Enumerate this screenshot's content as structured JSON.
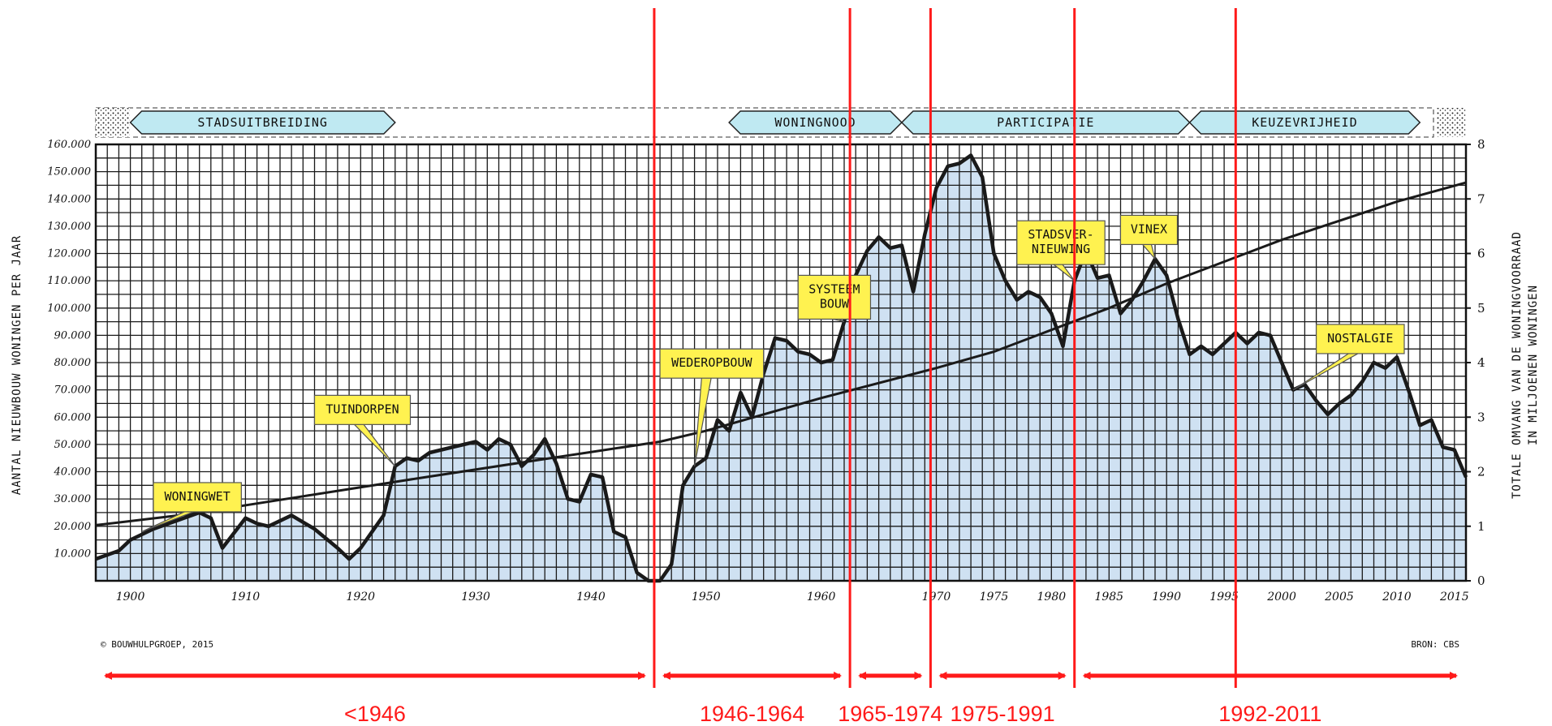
{
  "chart_data": {
    "type": "area",
    "title": "",
    "ylabel_left": "AANTAL NIEUWBOUW WONINGEN PER JAAR",
    "ylabel_right_lines": [
      "TOTALE OMVANG VAN DE WONINGVOORRAAD",
      "IN MILJOENEN WONINGEN"
    ],
    "xlim": [
      1897,
      2016
    ],
    "ylim_left": [
      0,
      160000
    ],
    "ylim_right": [
      0,
      8
    ],
    "grid": true,
    "x_ticks": [
      {
        "value": 1900,
        "label": "1900"
      },
      {
        "value": 1910,
        "label": "1910"
      },
      {
        "value": 1920,
        "label": "1920"
      },
      {
        "value": 1930,
        "label": "1930"
      },
      {
        "value": 1940,
        "label": "1940"
      },
      {
        "value": 1950,
        "label": "1950"
      },
      {
        "value": 1960,
        "label": "1960"
      },
      {
        "value": 1970,
        "label": "1970"
      },
      {
        "value": 1975,
        "label": "1975"
      },
      {
        "value": 1980,
        "label": "1980"
      },
      {
        "value": 1985,
        "label": "1985"
      },
      {
        "value": 1990,
        "label": "1990"
      },
      {
        "value": 1995,
        "label": "1995"
      },
      {
        "value": 2000,
        "label": "2000"
      },
      {
        "value": 2005,
        "label": "2005"
      },
      {
        "value": 2010,
        "label": "2010"
      },
      {
        "value": 2015,
        "label": "2015"
      }
    ],
    "y_ticks_left": [
      {
        "value": 10000,
        "label": "10.000"
      },
      {
        "value": 20000,
        "label": "20.000"
      },
      {
        "value": 30000,
        "label": "30.000"
      },
      {
        "value": 40000,
        "label": "40.000"
      },
      {
        "value": 50000,
        "label": "50.000"
      },
      {
        "value": 60000,
        "label": "60.000"
      },
      {
        "value": 70000,
        "label": "70.000"
      },
      {
        "value": 80000,
        "label": "80.000"
      },
      {
        "value": 90000,
        "label": "90.000"
      },
      {
        "value": 100000,
        "label": "100.000"
      },
      {
        "value": 110000,
        "label": "110.000"
      },
      {
        "value": 120000,
        "label": "120.000"
      },
      {
        "value": 130000,
        "label": "130.000"
      },
      {
        "value": 140000,
        "label": "140.000"
      },
      {
        "value": 150000,
        "label": "150.000"
      },
      {
        "value": 160000,
        "label": "160.000"
      }
    ],
    "y_ticks_right": [
      {
        "value": 0,
        "label": "0"
      },
      {
        "value": 1,
        "label": "1"
      },
      {
        "value": 2,
        "label": "2"
      },
      {
        "value": 3,
        "label": "3"
      },
      {
        "value": 4,
        "label": "4"
      },
      {
        "value": 5,
        "label": "5"
      },
      {
        "value": 6,
        "label": "6"
      },
      {
        "value": 7,
        "label": "7"
      },
      {
        "value": 8,
        "label": "8"
      }
    ],
    "series": [
      {
        "axis": "left",
        "values": [
          [
            1897,
            8000
          ],
          [
            1899,
            11000
          ],
          [
            1900,
            15000
          ],
          [
            1902,
            19000
          ],
          [
            1904,
            22000
          ],
          [
            1906,
            25000
          ],
          [
            1907,
            23000
          ],
          [
            1908,
            12000
          ],
          [
            1910,
            23000
          ],
          [
            1911,
            21000
          ],
          [
            1912,
            20000
          ],
          [
            1914,
            24000
          ],
          [
            1916,
            19000
          ],
          [
            1918,
            12000
          ],
          [
            1919,
            8000
          ],
          [
            1920,
            12000
          ],
          [
            1922,
            24000
          ],
          [
            1923,
            42000
          ],
          [
            1924,
            45000
          ],
          [
            1925,
            44000
          ],
          [
            1926,
            47000
          ],
          [
            1928,
            49000
          ],
          [
            1930,
            51000
          ],
          [
            1931,
            48000
          ],
          [
            1932,
            52000
          ],
          [
            1933,
            50000
          ],
          [
            1934,
            42000
          ],
          [
            1935,
            46000
          ],
          [
            1936,
            52000
          ],
          [
            1937,
            43000
          ],
          [
            1938,
            30000
          ],
          [
            1939,
            29000
          ],
          [
            1940,
            39000
          ],
          [
            1941,
            38000
          ],
          [
            1942,
            18000
          ],
          [
            1943,
            16000
          ],
          [
            1944,
            3000
          ],
          [
            1945,
            0
          ],
          [
            1946,
            0
          ],
          [
            1947,
            6000
          ],
          [
            1948,
            35000
          ],
          [
            1949,
            42000
          ],
          [
            1950,
            45000
          ],
          [
            1951,
            59000
          ],
          [
            1952,
            55000
          ],
          [
            1953,
            69000
          ],
          [
            1954,
            60000
          ],
          [
            1955,
            76000
          ],
          [
            1956,
            89000
          ],
          [
            1957,
            88000
          ],
          [
            1958,
            84000
          ],
          [
            1959,
            83000
          ],
          [
            1960,
            80000
          ],
          [
            1961,
            81000
          ],
          [
            1962,
            95000
          ],
          [
            1963,
            112000
          ],
          [
            1964,
            121000
          ],
          [
            1965,
            126000
          ],
          [
            1966,
            122000
          ],
          [
            1967,
            123000
          ],
          [
            1968,
            106000
          ],
          [
            1969,
            127000
          ],
          [
            1970,
            144000
          ],
          [
            1971,
            152000
          ],
          [
            1972,
            153000
          ],
          [
            1973,
            156000
          ],
          [
            1974,
            148000
          ],
          [
            1975,
            120000
          ],
          [
            1976,
            110000
          ],
          [
            1977,
            103000
          ],
          [
            1978,
            106000
          ],
          [
            1979,
            104000
          ],
          [
            1980,
            98000
          ],
          [
            1981,
            86000
          ],
          [
            1982,
            110000
          ],
          [
            1983,
            121000
          ],
          [
            1984,
            111000
          ],
          [
            1985,
            112000
          ],
          [
            1986,
            98000
          ],
          [
            1987,
            103000
          ],
          [
            1988,
            110000
          ],
          [
            1989,
            118000
          ],
          [
            1990,
            112000
          ],
          [
            1991,
            96000
          ],
          [
            1992,
            83000
          ],
          [
            1993,
            86000
          ],
          [
            1994,
            83000
          ],
          [
            1995,
            87000
          ],
          [
            1996,
            91000
          ],
          [
            1997,
            87000
          ],
          [
            1998,
            91000
          ],
          [
            1999,
            90000
          ],
          [
            2000,
            80000
          ],
          [
            2001,
            70000
          ],
          [
            2002,
            72000
          ],
          [
            2003,
            66000
          ],
          [
            2004,
            61000
          ],
          [
            2005,
            65000
          ],
          [
            2006,
            68000
          ],
          [
            2007,
            73000
          ],
          [
            2008,
            80000
          ],
          [
            2009,
            78000
          ],
          [
            2010,
            82000
          ],
          [
            2011,
            70000
          ],
          [
            2012,
            57000
          ],
          [
            2013,
            59000
          ],
          [
            2014,
            49000
          ],
          [
            2015,
            48000
          ],
          [
            2016,
            38000
          ]
        ]
      },
      {
        "axis": "right",
        "values": [
          [
            1897,
            1.02
          ],
          [
            1905,
            1.22
          ],
          [
            1915,
            1.55
          ],
          [
            1925,
            1.88
          ],
          [
            1935,
            2.2
          ],
          [
            1946,
            2.55
          ],
          [
            1950,
            2.75
          ],
          [
            1960,
            3.35
          ],
          [
            1970,
            3.9
          ],
          [
            1975,
            4.2
          ],
          [
            1980,
            4.6
          ],
          [
            1985,
            5.0
          ],
          [
            1990,
            5.45
          ],
          [
            1995,
            5.85
          ],
          [
            2000,
            6.25
          ],
          [
            2005,
            6.6
          ],
          [
            2010,
            6.95
          ],
          [
            2016,
            7.3
          ]
        ]
      }
    ],
    "themes": [
      {
        "label": "STADSUITBREIDING",
        "from": 1900,
        "to": 1923
      },
      {
        "label": "WONINGNOOD",
        "from": 1952,
        "to": 1967
      },
      {
        "label": "PARTICIPATIE",
        "from": 1967,
        "to": 1992
      },
      {
        "label": "KEUZEVRIJHEID",
        "from": 1992,
        "to": 2012
      }
    ],
    "annotations": [
      {
        "lines": [
          "WONINGWET"
        ],
        "x": 1902,
        "y": 36000,
        "point_x": 1901,
        "point_y": 18000
      },
      {
        "lines": [
          "TUINDORPEN"
        ],
        "x": 1916,
        "y": 68000,
        "point_x": 1923,
        "point_y": 42000
      },
      {
        "lines": [
          "WEDEROPBOUW"
        ],
        "x": 1946,
        "y": 85000,
        "point_x": 1949,
        "point_y": 42000
      },
      {
        "lines": [
          "SYSTEEM",
          "BOUW"
        ],
        "x": 1958,
        "y": 112000,
        "point_x": 1962,
        "point_y": 95000
      },
      {
        "lines": [
          "STADSVER-",
          "NIEUWING"
        ],
        "x": 1977,
        "y": 132000,
        "point_x": 1982,
        "point_y": 110000
      },
      {
        "lines": [
          "VINEX"
        ],
        "x": 1986,
        "y": 134000,
        "point_x": 1989,
        "point_y": 118000
      },
      {
        "lines": [
          "NOSTALGIE"
        ],
        "x": 2003,
        "y": 94000,
        "point_x": 2001,
        "point_y": 70000
      }
    ],
    "period_dividers": [
      1945.5,
      1962.5,
      1969.5,
      1982,
      1996
    ],
    "periods": [
      {
        "label": "<1946",
        "from": 1897,
        "to": 1945.5
      },
      {
        "label": "1946-1964",
        "from": 1945.5,
        "to": 1962.5
      },
      {
        "label": "1965-1974",
        "from": 1962.5,
        "to": 1969.5
      },
      {
        "label": "1975-1991",
        "from": 1969.5,
        "to": 1982
      },
      {
        "label": "1992-2011",
        "from": 1982,
        "to": 2016
      }
    ],
    "copyright": "© BOUWHULPGROEP, 2015",
    "source": "BRON: CBS",
    "colors": {
      "area_fill": "#cfe1f2",
      "line": "#1a1a1a",
      "grid": "#1a1a1a",
      "theme_fill": "#bfe9f2",
      "callout_fill": "#fff250",
      "period": "#ff1a1a"
    }
  }
}
